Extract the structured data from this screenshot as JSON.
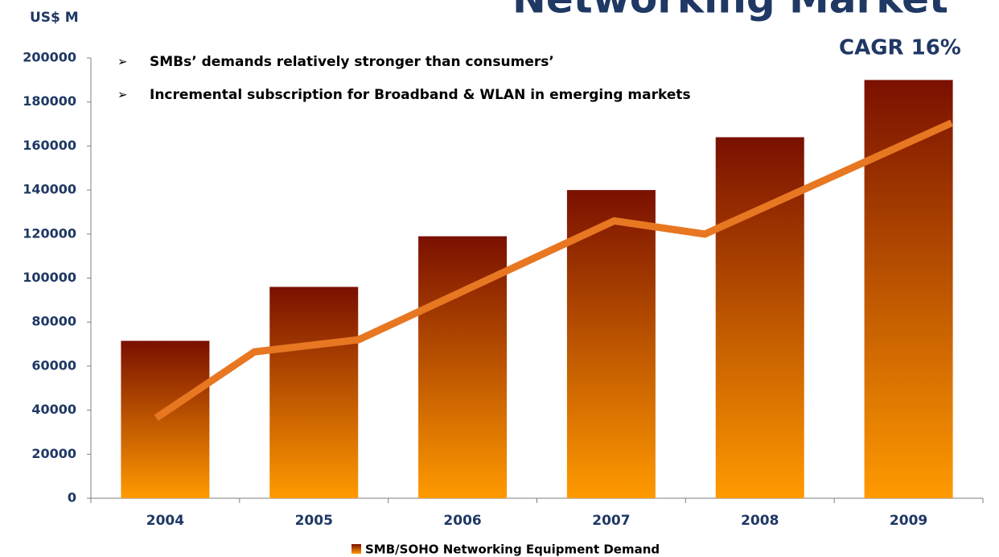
{
  "chart_data": {
    "type": "bar",
    "title": "Networking Market",
    "subtitle": "CAGR 16%",
    "y_axis_label": "US$ M",
    "annotations": [
      "SMBs’ demands relatively stronger than consumers’",
      "Incremental subscription for Broadband & WLAN in emerging markets"
    ],
    "categories": [
      "2004",
      "2005",
      "2006",
      "2007",
      "2008",
      "2009"
    ],
    "series": [
      {
        "name": "SMB/SOHO Networking Equipment Demand",
        "color": [
          "#7a1000",
          "#ff9a00"
        ],
        "values": [
          71500,
          96000,
          119000,
          140000,
          164000,
          190000
        ]
      }
    ],
    "line": {
      "color": "#e87722",
      "x": [
        -0.06,
        0.6,
        1.3,
        3.02,
        3.63,
        5.29
      ],
      "values": [
        36500,
        66500,
        72000,
        126000,
        120000,
        170500
      ]
    },
    "ylim": [
      0,
      200000
    ],
    "yticks": [
      0,
      20000,
      40000,
      60000,
      80000,
      100000,
      120000,
      140000,
      160000,
      180000,
      200000
    ]
  }
}
